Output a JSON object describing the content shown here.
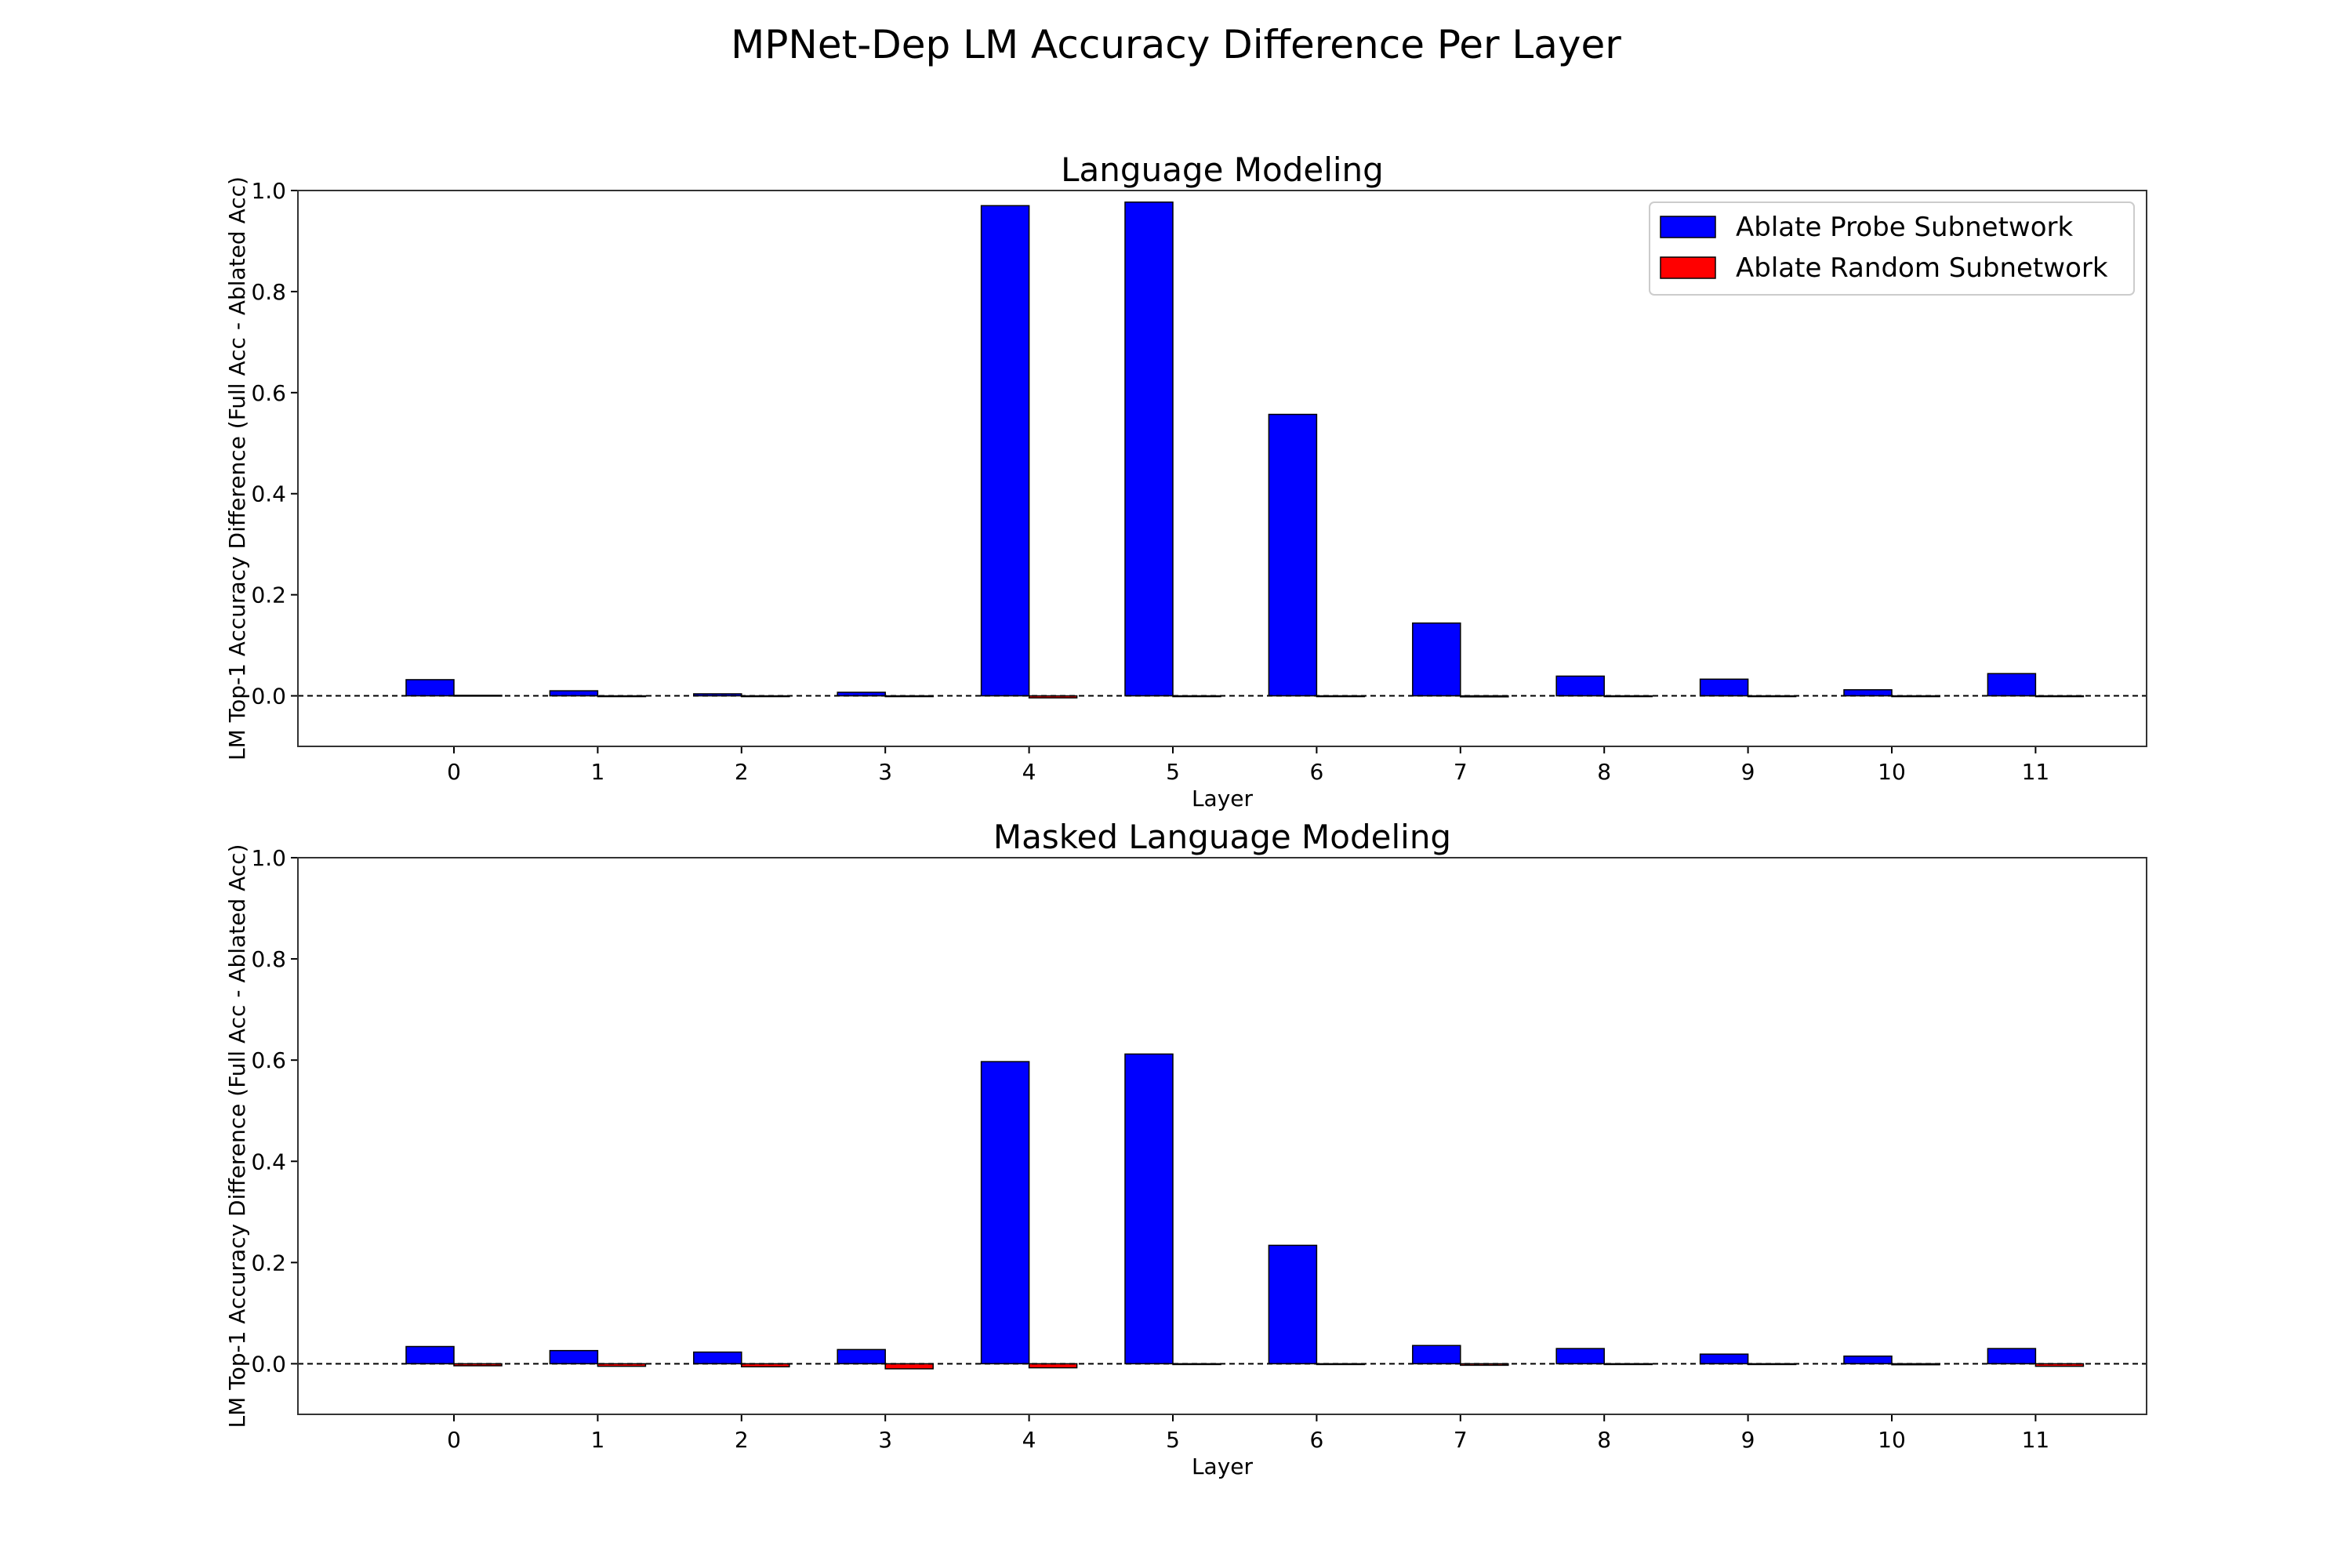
{
  "figure": {
    "title": "MPNet-Dep LM Accuracy Difference Per Layer"
  },
  "colors": {
    "probe": "#0000ff",
    "random": "#ff0000",
    "edge": "#000000"
  },
  "chart_data": [
    {
      "type": "bar",
      "title": "Language Modeling",
      "xlabel": "Layer",
      "ylabel": "LM Top-1 Accuracy Difference (Full Acc - Ablated Acc)",
      "ylim": [
        -0.1,
        1.0
      ],
      "yticks": [
        "0.0",
        "0.2",
        "0.4",
        "0.6",
        "0.8",
        "1.0"
      ],
      "categories": [
        "0",
        "1",
        "2",
        "3",
        "4",
        "5",
        "6",
        "7",
        "8",
        "9",
        "10",
        "11"
      ],
      "series": [
        {
          "name": "Ablate Probe Subnetwork",
          "values": [
            0.032,
            0.01,
            0.004,
            0.007,
            0.97,
            0.977,
            0.557,
            0.144,
            0.039,
            0.033,
            0.012,
            0.044
          ]
        },
        {
          "name": "Ablate Random Subnetwork",
          "values": [
            0.001,
            -0.001,
            -0.001,
            -0.001,
            -0.004,
            -0.001,
            -0.001,
            -0.002,
            -0.001,
            -0.001,
            -0.001,
            -0.001
          ]
        }
      ],
      "baseline": 0.0,
      "legend": "upper-right",
      "grid": false
    },
    {
      "type": "bar",
      "title": "Masked Language Modeling",
      "xlabel": "Layer",
      "ylabel": "LM Top-1 Accuracy Difference (Full Acc - Ablated Acc)",
      "ylim": [
        -0.1,
        1.0
      ],
      "yticks": [
        "0.0",
        "0.2",
        "0.4",
        "0.6",
        "0.8",
        "1.0"
      ],
      "categories": [
        "0",
        "1",
        "2",
        "3",
        "4",
        "5",
        "6",
        "7",
        "8",
        "9",
        "10",
        "11"
      ],
      "series": [
        {
          "name": "Ablate Probe Subnetwork",
          "values": [
            0.034,
            0.026,
            0.023,
            0.028,
            0.597,
            0.612,
            0.234,
            0.036,
            0.03,
            0.019,
            0.015,
            0.03
          ]
        },
        {
          "name": "Ablate Random Subnetwork",
          "values": [
            -0.004,
            -0.005,
            -0.006,
            -0.01,
            -0.008,
            -0.001,
            -0.001,
            -0.003,
            -0.001,
            -0.001,
            -0.002,
            -0.005
          ]
        }
      ],
      "baseline": 0.0,
      "legend": "none",
      "grid": false
    }
  ]
}
